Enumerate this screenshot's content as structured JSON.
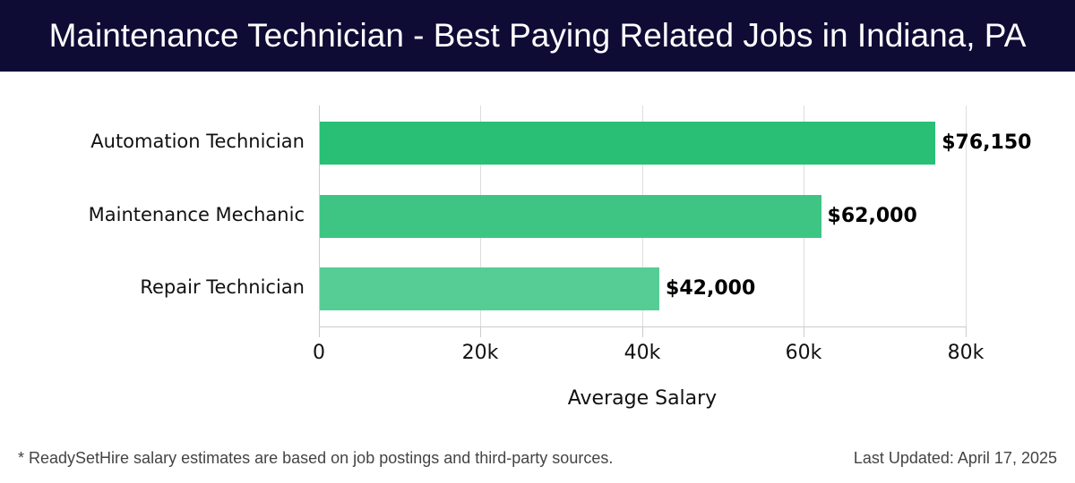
{
  "header": {
    "title": "Maintenance Technician - Best Paying Related Jobs in Indiana, PA",
    "background": "#0e0b35"
  },
  "footer": {
    "footnote": "* ReadySetHire salary estimates are based on job postings and third-party sources.",
    "last_updated": "Last Updated: April 17, 2025"
  },
  "chart_data": {
    "type": "bar",
    "orientation": "horizontal",
    "title": "Maintenance Technician - Best Paying Related Jobs in Indiana, PA",
    "xlabel": "Average Salary",
    "ylabel": "",
    "categories": [
      "Automation Technician",
      "Maintenance Mechanic",
      "Repair Technician"
    ],
    "values": [
      76150,
      62000,
      42000
    ],
    "value_labels": [
      "$76,150",
      "$62,000",
      "$42,000"
    ],
    "colors": [
      "#29bf75",
      "#3ec584",
      "#57cd96"
    ],
    "xlim": [
      0,
      80000
    ],
    "xticks": [
      0,
      20000,
      40000,
      60000,
      80000
    ],
    "xtick_labels": [
      "0",
      "20k",
      "40k",
      "60k",
      "80k"
    ],
    "grid": "vertical",
    "legend": "none"
  }
}
